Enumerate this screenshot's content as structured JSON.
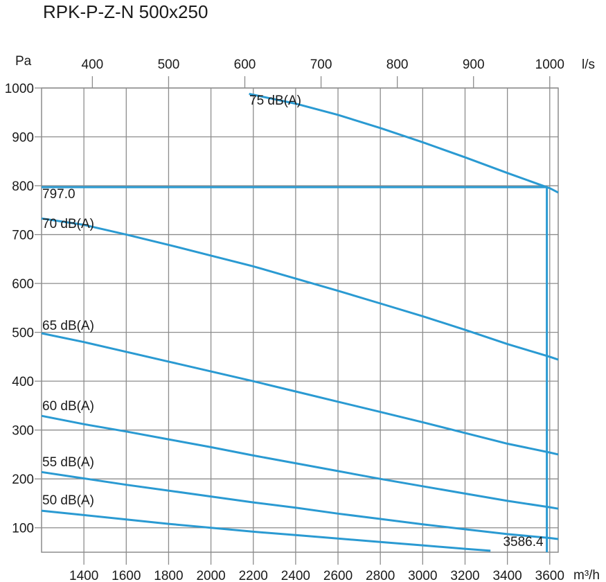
{
  "chart_data": {
    "type": "line",
    "title": "RPK-P-Z-N 500x250",
    "ylabel": "Pa",
    "xlabel": "m³/h",
    "x2label": "l/s",
    "xlim": [
      1200,
      3640
    ],
    "ylim": [
      50,
      1000
    ],
    "x_ticks": [
      1400,
      1600,
      1800,
      2000,
      2200,
      2400,
      2600,
      2800,
      3000,
      3200,
      3400,
      3600
    ],
    "x2_ticks": [
      400,
      500,
      600,
      700,
      800,
      900,
      1000
    ],
    "y_ticks": [
      100,
      200,
      300,
      400,
      500,
      600,
      700,
      800,
      900,
      1000
    ],
    "series": [
      {
        "name": "75 dB(A)",
        "x": [
          2180,
          2400,
          2600,
          2800,
          3000,
          3200,
          3400,
          3600,
          3640
        ],
        "y": [
          988,
          968,
          945,
          918,
          889,
          858,
          826,
          795,
          786
        ]
      },
      {
        "name": "70 dB(A)",
        "x": [
          1200,
          1400,
          1600,
          1800,
          2000,
          2200,
          2400,
          2600,
          2800,
          3000,
          3200,
          3400,
          3600,
          3640
        ],
        "y": [
          733,
          720,
          700,
          679,
          657,
          635,
          610,
          585,
          559,
          533,
          505,
          476,
          450,
          444
        ]
      },
      {
        "name": "65 dB(A)",
        "x": [
          1200,
          1400,
          1600,
          1800,
          2000,
          2200,
          2400,
          2600,
          2800,
          3000,
          3200,
          3400,
          3600,
          3640
        ],
        "y": [
          498,
          480,
          460,
          440,
          420,
          400,
          379,
          358,
          337,
          316,
          294,
          272,
          254,
          250
        ]
      },
      {
        "name": "60 dB(A)",
        "x": [
          1200,
          1400,
          1600,
          1800,
          2000,
          2200,
          2400,
          2600,
          2800,
          3000,
          3200,
          3400,
          3600,
          3640
        ],
        "y": [
          329,
          312,
          297,
          281,
          265,
          248,
          232,
          216,
          200,
          185,
          170,
          155,
          142,
          139
        ]
      },
      {
        "name": "55 dB(A)",
        "x": [
          1200,
          1400,
          1600,
          1800,
          2000,
          2200,
          2400,
          2600,
          2800,
          3000,
          3200,
          3400,
          3600,
          3640
        ],
        "y": [
          214,
          201,
          188,
          176,
          164,
          152,
          141,
          129,
          118,
          107,
          97,
          87,
          79,
          77
        ]
      },
      {
        "name": "50 dB(A)",
        "x": [
          1200,
          1400,
          1600,
          1800,
          2000,
          2200,
          2400,
          2600,
          2800,
          3000,
          3200,
          3320
        ],
        "y": [
          135,
          126,
          117,
          108,
          100,
          92,
          85,
          78,
          71,
          64,
          57,
          53
        ]
      }
    ],
    "operating_point": {
      "x": 3586.4,
      "y": 797.0,
      "x_label": "3586.4",
      "y_label": "797.0"
    }
  }
}
